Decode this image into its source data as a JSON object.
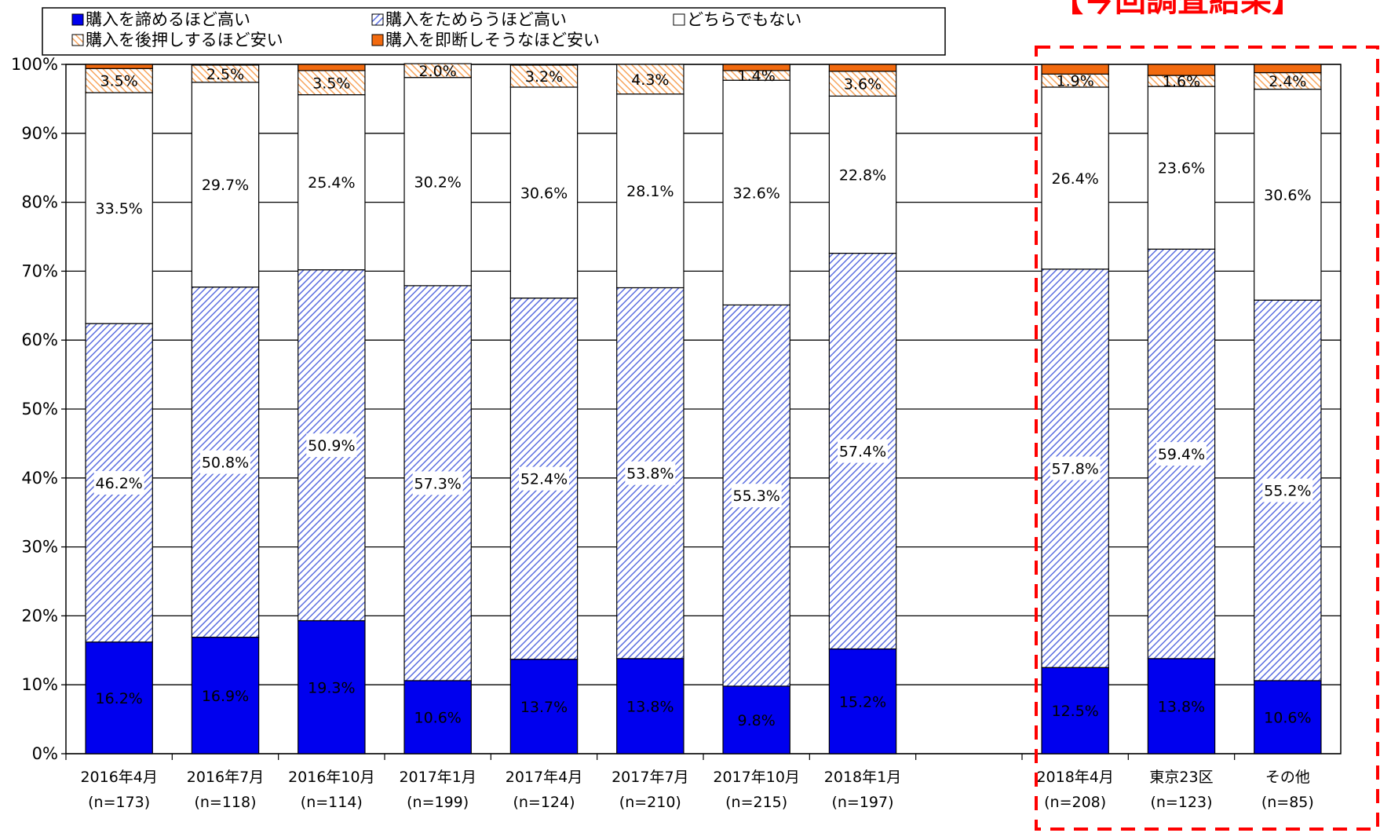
{
  "highlight_title": "【今回調査結果】",
  "legend": [
    {
      "key": "high_give_up",
      "label": "購入を諦めるほど高い"
    },
    {
      "key": "high_hesitate",
      "label": "購入をためらうほど高い"
    },
    {
      "key": "neutral",
      "label": "どちらでもない"
    },
    {
      "key": "cheap_push",
      "label": "購入を後押しするほど安い"
    },
    {
      "key": "cheap_instant",
      "label": "購入を即断しそうなほど安い"
    }
  ],
  "colors": {
    "high_give_up": "#0000ee",
    "high_hesitate": "#5b6ee0",
    "neutral": "#ffffff",
    "cheap_push": "#f7a45c",
    "cheap_instant": "#f26a0f",
    "highlight": "#ff0000"
  },
  "chart_data": {
    "type": "bar",
    "stacked": true,
    "ylim": [
      0,
      100
    ],
    "yticks": [
      "0%",
      "10%",
      "20%",
      "30%",
      "40%",
      "50%",
      "60%",
      "70%",
      "80%",
      "90%",
      "100%"
    ],
    "categories": [
      {
        "label": "2016年4月",
        "n": "(n=173)"
      },
      {
        "label": "2016年7月",
        "n": "(n=118)"
      },
      {
        "label": "2016年10月",
        "n": "(n=114)"
      },
      {
        "label": "2017年1月",
        "n": "(n=199)"
      },
      {
        "label": "2017年4月",
        "n": "(n=124)"
      },
      {
        "label": "2017年7月",
        "n": "(n=210)"
      },
      {
        "label": "2017年10月",
        "n": "(n=215)"
      },
      {
        "label": "2018年1月",
        "n": "(n=197)"
      },
      {
        "label": "",
        "n": ""
      },
      {
        "label": "2018年4月",
        "n": "(n=208)"
      },
      {
        "label": "東京23区",
        "n": "(n=123)"
      },
      {
        "label": "その他",
        "n": "(n=85)"
      }
    ],
    "series": [
      {
        "key": "high_give_up",
        "name": "購入を諦めるほど高い",
        "values": [
          16.2,
          16.9,
          19.3,
          10.6,
          13.7,
          13.8,
          9.8,
          15.2,
          null,
          12.5,
          13.8,
          10.6
        ],
        "labels": [
          "16.2%",
          "16.9%",
          "19.3%",
          "10.6%",
          "13.7%",
          "13.8%",
          "9.8%",
          "15.2%",
          "",
          "12.5%",
          "13.8%",
          "10.6%"
        ]
      },
      {
        "key": "high_hesitate",
        "name": "購入をためらうほど高い",
        "values": [
          46.2,
          50.8,
          50.9,
          57.3,
          52.4,
          53.8,
          55.3,
          57.4,
          null,
          57.8,
          59.4,
          55.2
        ],
        "labels": [
          "46.2%",
          "50.8%",
          "50.9%",
          "57.3%",
          "52.4%",
          "53.8%",
          "55.3%",
          "57.4%",
          "",
          "57.8%",
          "59.4%",
          "55.2%"
        ]
      },
      {
        "key": "neutral",
        "name": "どちらでもない",
        "values": [
          33.5,
          29.7,
          25.4,
          30.2,
          30.6,
          28.1,
          32.6,
          22.8,
          null,
          26.4,
          23.6,
          30.6
        ],
        "labels": [
          "33.5%",
          "29.7%",
          "25.4%",
          "30.2%",
          "30.6%",
          "28.1%",
          "32.6%",
          "22.8%",
          "",
          "26.4%",
          "23.6%",
          "30.6%"
        ]
      },
      {
        "key": "cheap_push",
        "name": "購入を後押しするほど安い",
        "values": [
          3.5,
          2.5,
          3.5,
          2.0,
          3.2,
          4.3,
          1.4,
          3.6,
          null,
          1.9,
          1.6,
          2.4
        ],
        "labels": [
          "3.5%",
          "2.5%",
          "3.5%",
          "2.0%",
          "3.2%",
          "4.3%",
          "1.4%",
          "3.6%",
          "",
          "1.9%",
          "1.6%",
          "2.4%"
        ]
      },
      {
        "key": "cheap_instant",
        "name": "購入を即断しそうなほど安い",
        "values": [
          0.6,
          0.1,
          0.9,
          0.0,
          0.1,
          0.0,
          0.9,
          1.0,
          null,
          1.4,
          1.6,
          1.2
        ],
        "labels": [
          "",
          "",
          "",
          "",
          "",
          "",
          "",
          "",
          "",
          "",
          "",
          ""
        ]
      }
    ]
  }
}
